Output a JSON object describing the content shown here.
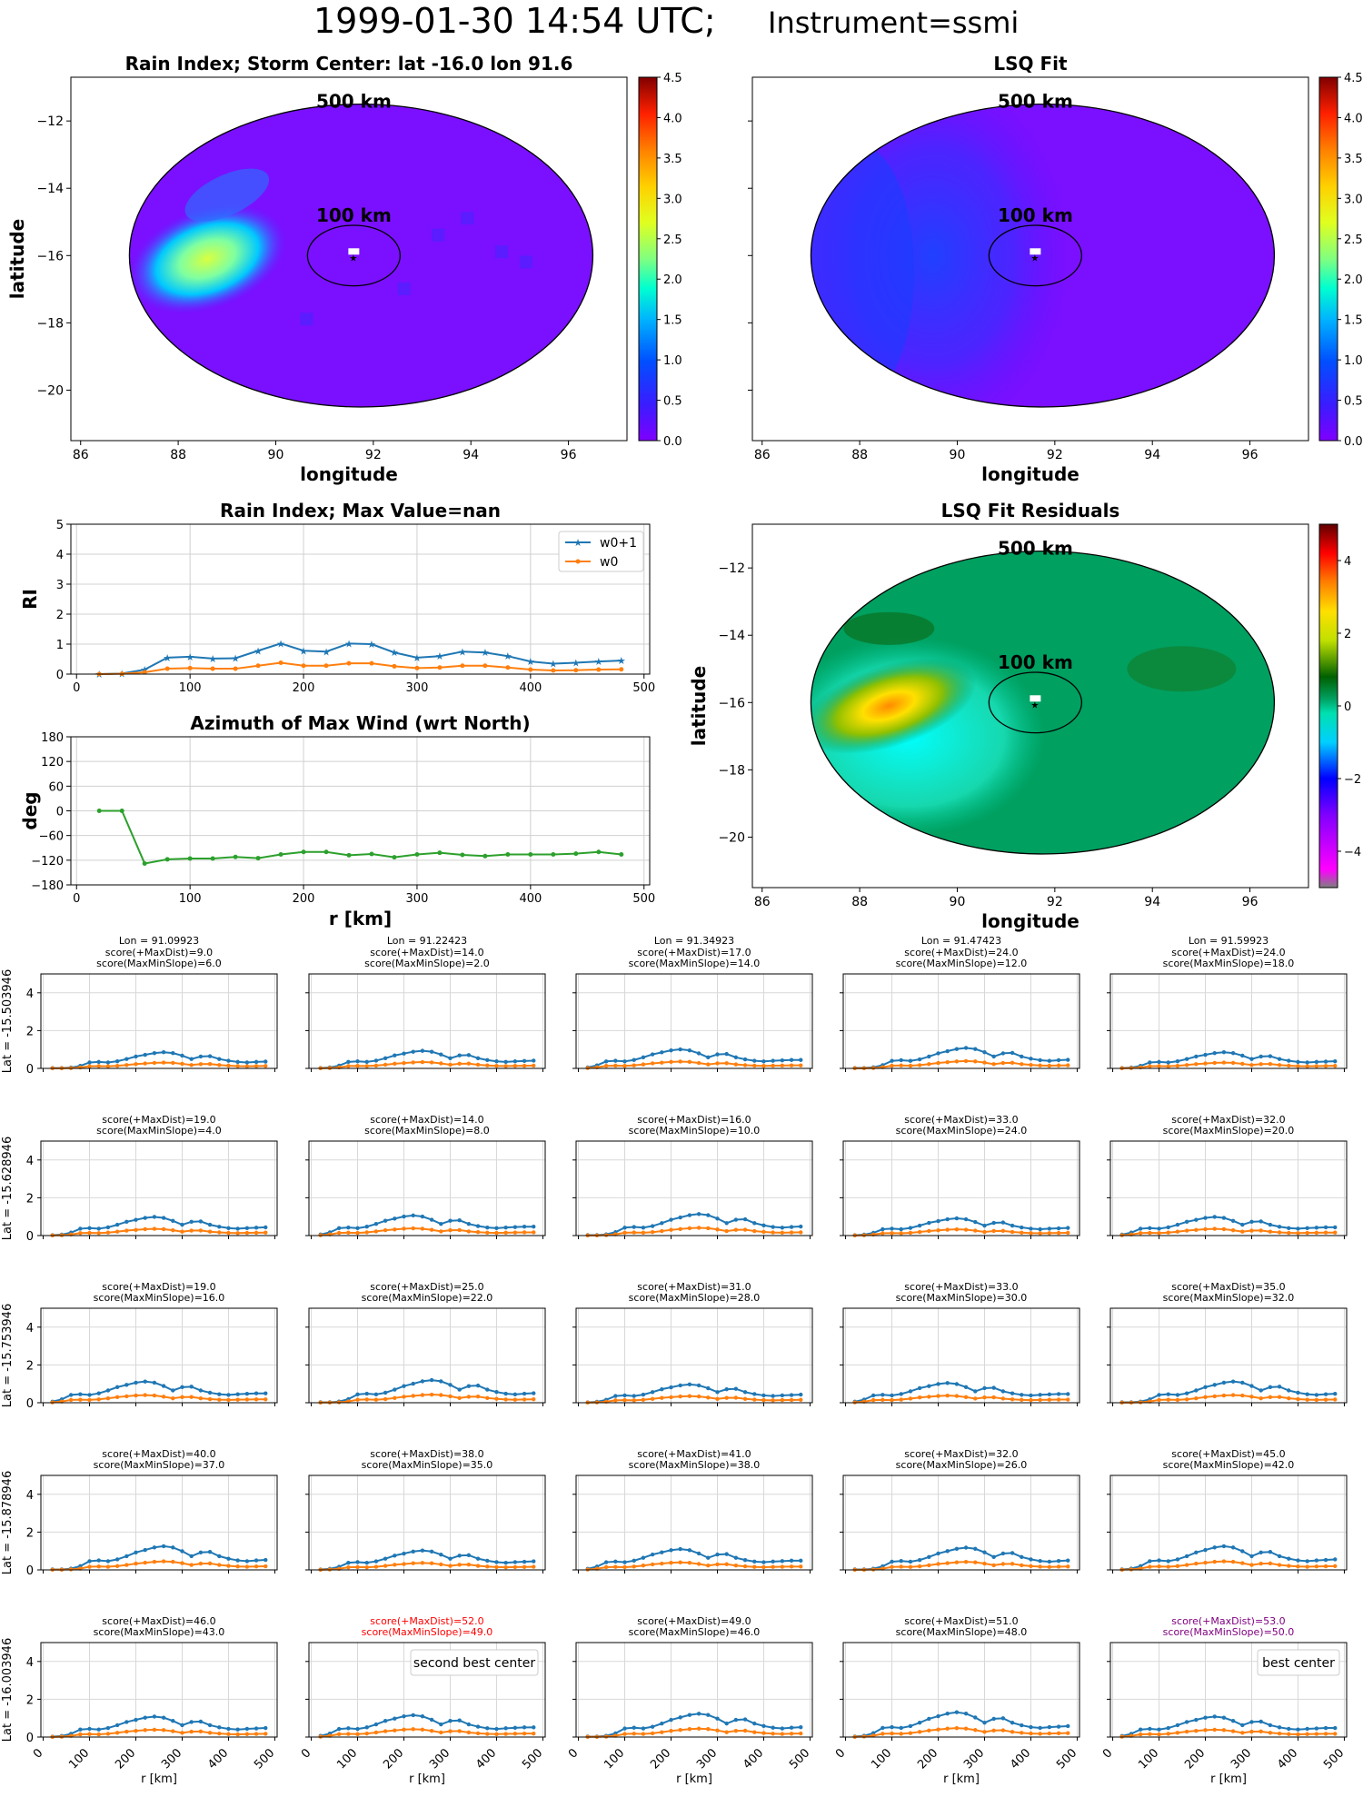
{
  "header": {
    "title_main": "1999-01-30 14:54 UTC;",
    "title_instrument": "Instrument=ssmi"
  },
  "colors": {
    "w0p1": "#1f77b4",
    "w0": "#ff7f0e",
    "azimuth": "#2ca02c",
    "second_best": "#ff0000",
    "best": "#800080"
  },
  "chart_data": [
    {
      "id": "rain_index_map",
      "type": "heatmap",
      "title": "Rain Index; Storm Center: lat -16.0 lon 91.6",
      "xlabel": "longitude",
      "ylabel": "latitude",
      "xlim": [
        85.8,
        97.2
      ],
      "ylim": [
        -21.5,
        -10.7
      ],
      "xticks": [
        86,
        88,
        90,
        92,
        94,
        96
      ],
      "yticks": [
        -12,
        -14,
        -16,
        -18,
        -20
      ],
      "storm_center": {
        "lat": -16.0,
        "lon": 91.6
      },
      "ring_labels": [
        "500 km",
        "100 km"
      ],
      "colorbar": {
        "range": [
          0,
          4.5
        ],
        "ticks": [
          "0.0",
          "0.5",
          "1.0",
          "1.5",
          "2.0",
          "2.5",
          "3.0",
          "3.5",
          "4.0",
          "4.5"
        ]
      },
      "hot_spot": {
        "lat": -16.1,
        "lon": 88.5,
        "value": 2.0
      }
    },
    {
      "id": "lsq_fit_map",
      "type": "heatmap",
      "title": "LSQ Fit",
      "xlabel": "longitude",
      "xlim": [
        85.8,
        97.2
      ],
      "ylim": [
        -21.5,
        -10.7
      ],
      "xticks": [
        86,
        88,
        90,
        92,
        94,
        96
      ],
      "ring_labels": [
        "500 km",
        "100 km"
      ],
      "colorbar": {
        "range": [
          0,
          4.5
        ],
        "ticks": [
          "0.0",
          "0.5",
          "1.0",
          "1.5",
          "2.0",
          "2.5",
          "3.0",
          "3.5",
          "4.0",
          "4.5"
        ]
      }
    },
    {
      "id": "rain_index_profile",
      "type": "line",
      "title": "Rain Index; Max Value=nan",
      "ylabel": "RI",
      "xlim": [
        -5,
        505
      ],
      "ylim": [
        0,
        5
      ],
      "xticks": [
        0,
        100,
        200,
        300,
        400,
        500
      ],
      "yticks": [
        0,
        1,
        2,
        3,
        4,
        5
      ],
      "x": [
        20,
        40,
        60,
        80,
        100,
        120,
        140,
        160,
        180,
        200,
        220,
        240,
        260,
        280,
        300,
        320,
        340,
        360,
        380,
        400,
        420,
        440,
        460,
        480
      ],
      "series": [
        {
          "name": "w0+1",
          "values": [
            0.0,
            0.02,
            0.15,
            0.55,
            0.58,
            0.52,
            0.53,
            0.78,
            1.02,
            0.78,
            0.75,
            1.02,
            1.0,
            0.72,
            0.55,
            0.6,
            0.75,
            0.72,
            0.6,
            0.42,
            0.35,
            0.38,
            0.42,
            0.45
          ]
        },
        {
          "name": "w0",
          "values": [
            0.0,
            0.01,
            0.06,
            0.18,
            0.2,
            0.18,
            0.18,
            0.28,
            0.38,
            0.28,
            0.28,
            0.36,
            0.36,
            0.26,
            0.2,
            0.22,
            0.28,
            0.28,
            0.22,
            0.15,
            0.12,
            0.13,
            0.15,
            0.16
          ]
        }
      ]
    },
    {
      "id": "azimuth_profile",
      "type": "line",
      "title": "Azimuth of Max Wind (wrt North)",
      "xlabel": "r [km]",
      "ylabel": "deg",
      "xlim": [
        -5,
        505
      ],
      "ylim": [
        -180,
        180
      ],
      "xticks": [
        0,
        100,
        200,
        300,
        400,
        500
      ],
      "yticks": [
        180,
        120,
        60,
        0,
        -60,
        -120,
        -180
      ],
      "x": [
        20,
        40,
        60,
        80,
        100,
        120,
        140,
        160,
        180,
        200,
        220,
        240,
        260,
        280,
        300,
        320,
        340,
        360,
        380,
        400,
        420,
        440,
        460,
        480
      ],
      "values": [
        0,
        0,
        -128,
        -118,
        -116,
        -116,
        -112,
        -115,
        -106,
        -100,
        -100,
        -108,
        -105,
        -113,
        -106,
        -102,
        -107,
        -110,
        -106,
        -106,
        -106,
        -104,
        -100,
        -106
      ]
    },
    {
      "id": "residuals_map",
      "type": "heatmap",
      "title": "LSQ Fit Residuals",
      "xlabel": "longitude",
      "ylabel": "latitude",
      "xlim": [
        85.8,
        97.2
      ],
      "ylim": [
        -21.5,
        -10.7
      ],
      "xticks": [
        86,
        88,
        90,
        92,
        94,
        96
      ],
      "yticks": [
        -12,
        -14,
        -16,
        -18,
        -20
      ],
      "ring_labels": [
        "500 km",
        "100 km"
      ],
      "colorbar": {
        "range": [
          -5,
          5
        ],
        "ticks": [
          "−4",
          "−2",
          "0",
          "2",
          "4"
        ]
      }
    },
    {
      "id": "center_grid",
      "type": "line",
      "xlabel": "r [km]",
      "xlim": [
        -5,
        505
      ],
      "ylim": [
        0,
        5
      ],
      "xticks": [
        0,
        100,
        200,
        300,
        400,
        500
      ],
      "yticks": [
        0,
        2,
        4
      ],
      "lons": [
        "Lon = 91.09923",
        "Lon = 91.22423",
        "Lon = 91.34923",
        "Lon = 91.47423",
        "Lon = 91.59923"
      ],
      "lats": [
        "Lat = -15.503946",
        "Lat = -15.628946",
        "Lat = -15.753946",
        "Lat = -15.878946",
        "Lat = -16.003946"
      ],
      "scores": [
        [
          [
            9.0,
            6.0
          ],
          [
            14.0,
            2.0
          ],
          [
            17.0,
            14.0
          ],
          [
            24.0,
            12.0
          ],
          [
            24.0,
            18.0
          ]
        ],
        [
          [
            19.0,
            4.0
          ],
          [
            14.0,
            8.0
          ],
          [
            16.0,
            10.0
          ],
          [
            33.0,
            24.0
          ],
          [
            32.0,
            20.0
          ]
        ],
        [
          [
            19.0,
            16.0
          ],
          [
            25.0,
            22.0
          ],
          [
            31.0,
            28.0
          ],
          [
            33.0,
            30.0
          ],
          [
            35.0,
            32.0
          ]
        ],
        [
          [
            40.0,
            37.0
          ],
          [
            38.0,
            35.0
          ],
          [
            41.0,
            38.0
          ],
          [
            32.0,
            26.0
          ],
          [
            45.0,
            42.0
          ]
        ],
        [
          [
            46.0,
            43.0
          ],
          [
            52.0,
            49.0
          ],
          [
            49.0,
            46.0
          ],
          [
            51.0,
            48.0
          ],
          [
            53.0,
            50.0
          ]
        ]
      ],
      "score_label_1": "score(+MaxDist)=",
      "score_label_2": "score(MaxMinSlope)=",
      "second_best_label": "second best center",
      "best_label": "best center",
      "second_best_index": [
        4,
        1
      ],
      "best_index": [
        4,
        4
      ],
      "base_profile": [
        0.02,
        0.05,
        0.15,
        0.35,
        0.38,
        0.35,
        0.42,
        0.55,
        0.7,
        0.8,
        0.9,
        0.95,
        0.9,
        0.75,
        0.55,
        0.7,
        0.72,
        0.55,
        0.45,
        0.38,
        0.35,
        0.38,
        0.4,
        0.42
      ]
    }
  ]
}
